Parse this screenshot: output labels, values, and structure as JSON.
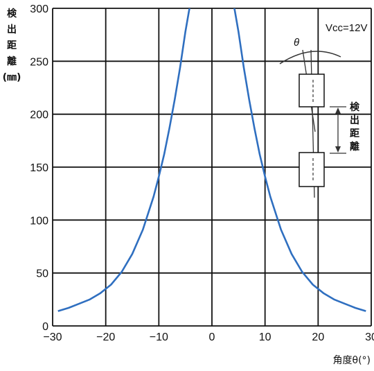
{
  "chart_data": {
    "type": "line",
    "title": "",
    "xlabel": "角度θ(°)",
    "ylabel_chars": [
      "検",
      "出",
      "距",
      "離",
      "(㎜)"
    ],
    "xlim": [
      -30,
      30
    ],
    "ylim": [
      0,
      300
    ],
    "x_ticks": [
      "−30",
      "−20",
      "−10",
      "0",
      "10",
      "20",
      "30"
    ],
    "y_ticks": [
      "0",
      "50",
      "100",
      "150",
      "200",
      "250",
      "300"
    ],
    "grid": true,
    "series": [
      {
        "color": "#2f6fc0",
        "x": [
          -29,
          -27,
          -25,
          -23,
          -21,
          -19,
          -17,
          -15,
          -13,
          -11,
          -10,
          -9,
          -8,
          -7,
          -6,
          -5,
          -4.3,
          -3.8
        ],
        "y": [
          14,
          17,
          21,
          25,
          31,
          39,
          51,
          68,
          91,
          122,
          141,
          162,
          187,
          214,
          244,
          278,
          298,
          310
        ]
      },
      {
        "color": "#2f6fc0",
        "x": [
          3.8,
          4.3,
          5,
          6,
          7,
          8,
          9,
          10,
          11,
          13,
          15,
          17,
          19,
          21,
          23,
          25,
          27,
          29
        ],
        "y": [
          310,
          298,
          278,
          244,
          214,
          187,
          162,
          141,
          122,
          91,
          68,
          51,
          39,
          31,
          25,
          21,
          17,
          14
        ]
      }
    ],
    "annotations": {
      "vcc": "Vcc=12V",
      "theta": "θ",
      "distance_chars": [
        "検",
        "出",
        "距",
        "離"
      ]
    }
  }
}
